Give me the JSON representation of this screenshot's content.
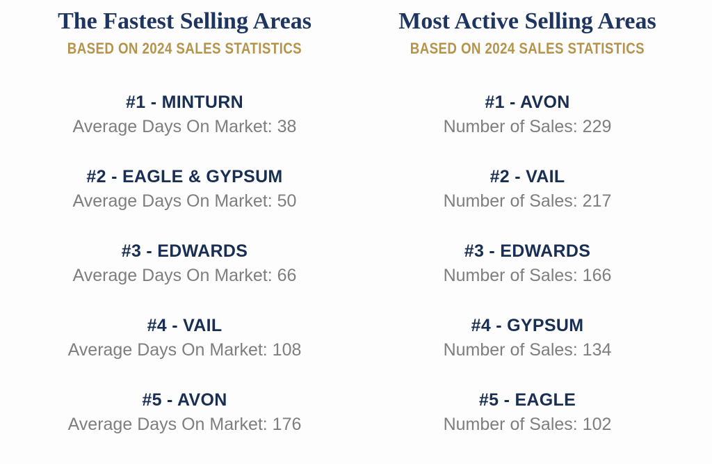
{
  "colors": {
    "navy_title": "#1d3560",
    "navy_rank": "#182e52",
    "gold_subtitle": "#b5934a",
    "gray_stat": "#7e7e7e",
    "background": "#fdfdfd"
  },
  "columns": [
    {
      "title": "The Fastest Selling Areas",
      "subtitle": "BASED ON 2024 SALES STATISTICS",
      "entries": [
        {
          "rank": "#1 - MINTURN",
          "stat": "Average Days On Market: 38"
        },
        {
          "rank": "#2 - EAGLE & GYPSUM",
          "stat": "Average Days On Market: 50"
        },
        {
          "rank": "#3 - EDWARDS",
          "stat": "Average Days On Market: 66"
        },
        {
          "rank": "#4 - VAIL",
          "stat": "Average Days On Market: 108"
        },
        {
          "rank": "#5 - AVON",
          "stat": "Average Days On Market: 176"
        }
      ]
    },
    {
      "title": "Most Active Selling Areas",
      "subtitle": "BASED ON 2024 SALES STATISTICS",
      "entries": [
        {
          "rank": "#1 - AVON",
          "stat": "Number of Sales: 229"
        },
        {
          "rank": "#2 - VAIL",
          "stat": "Number of Sales: 217"
        },
        {
          "rank": "#3 - EDWARDS",
          "stat": "Number of Sales: 166"
        },
        {
          "rank": "#4 - GYPSUM",
          "stat": "Number of Sales: 134"
        },
        {
          "rank": "#5 - EAGLE",
          "stat": "Number of Sales: 102"
        }
      ]
    }
  ],
  "chart_data": [
    {
      "type": "table",
      "title": "The Fastest Selling Areas",
      "subtitle": "BASED ON 2024 SALES STATISTICS",
      "metric": "Average Days On Market",
      "ranks": [
        1,
        2,
        3,
        4,
        5
      ],
      "categories": [
        "MINTURN",
        "EAGLE & GYPSUM",
        "EDWARDS",
        "VAIL",
        "AVON"
      ],
      "values": [
        38,
        50,
        66,
        108,
        176
      ]
    },
    {
      "type": "table",
      "title": "Most Active Selling Areas",
      "subtitle": "BASED ON 2024 SALES STATISTICS",
      "metric": "Number of Sales",
      "ranks": [
        1,
        2,
        3,
        4,
        5
      ],
      "categories": [
        "AVON",
        "VAIL",
        "EDWARDS",
        "GYPSUM",
        "EAGLE"
      ],
      "values": [
        229,
        217,
        166,
        134,
        102
      ]
    }
  ]
}
